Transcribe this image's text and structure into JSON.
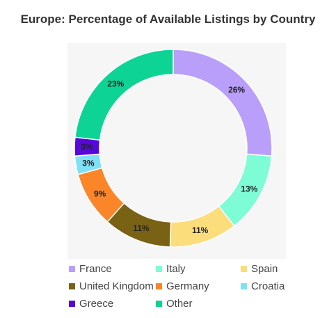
{
  "chart_data": {
    "type": "pie",
    "title": "Europe: Percentage of Available Listings by Country",
    "donut": true,
    "categories": [
      "France",
      "Italy",
      "Spain",
      "United Kingdom",
      "Germany",
      "Croatia",
      "Greece",
      "Other"
    ],
    "values": [
      26,
      13,
      11,
      11,
      9,
      3,
      3,
      23
    ],
    "labels": [
      "26%",
      "13%",
      "11%",
      "11%",
      "9%",
      "3%",
      "3%",
      "23%"
    ],
    "colors": [
      "#b99ff9",
      "#7efcd6",
      "#fbdd7b",
      "#7a6214",
      "#fa8629",
      "#7fe1f6",
      "#5608d8",
      "#0dd494"
    ],
    "legend_position": "bottom"
  }
}
